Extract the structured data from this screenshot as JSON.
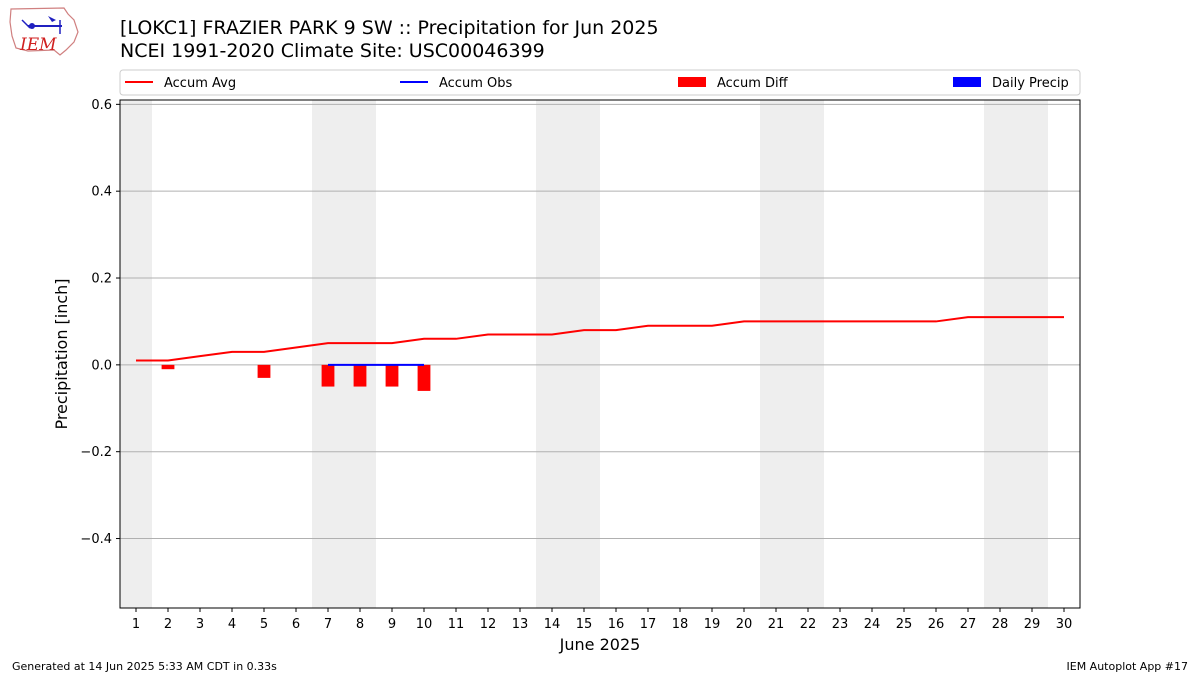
{
  "header": {
    "title_line1": "[LOKC1] FRAZIER PARK 9 SW :: Precipitation for Jun 2025",
    "title_line2": "NCEI 1991-2020 Climate Site: USC00046399",
    "logo_text": "IEM"
  },
  "footer": {
    "generated": "Generated at 14 Jun 2025 5:33 AM CDT in 0.33s",
    "app": "IEM Autoplot App #17"
  },
  "colors": {
    "accum_avg": "#ff0000",
    "accum_obs": "#0000ff",
    "accum_diff": "#ff0000",
    "daily_precip": "#0000ff",
    "weekend_shade": "#eeeeee",
    "grid": "#b0b0b0"
  },
  "chart_data": {
    "type": "line",
    "xlabel": "June 2025",
    "ylabel": "Precipitation [inch]",
    "x": [
      1,
      2,
      3,
      4,
      5,
      6,
      7,
      8,
      9,
      10,
      11,
      12,
      13,
      14,
      15,
      16,
      17,
      18,
      19,
      20,
      21,
      22,
      23,
      24,
      25,
      26,
      27,
      28,
      29,
      30
    ],
    "xticks": [
      "1",
      "2",
      "3",
      "4",
      "5",
      "6",
      "7",
      "8",
      "9",
      "10",
      "11",
      "12",
      "13",
      "14",
      "15",
      "16",
      "17",
      "18",
      "19",
      "20",
      "21",
      "22",
      "23",
      "24",
      "25",
      "26",
      "27",
      "28",
      "29",
      "30"
    ],
    "xlim": [
      0.5,
      30.5
    ],
    "ylim": [
      -0.56,
      0.61
    ],
    "yticks": [
      -0.4,
      -0.2,
      0.0,
      0.2,
      0.4,
      0.6
    ],
    "ytick_labels": [
      "−0.4",
      "−0.2",
      "0.0",
      "0.2",
      "0.4",
      "0.6"
    ],
    "grid": "horizontal",
    "legend": {
      "placement": "top",
      "entries": [
        "Accum Avg",
        "Accum Obs",
        "Accum Diff",
        "Daily Precip"
      ]
    },
    "weekend_bands": [
      [
        0.5,
        1.5
      ],
      [
        6.5,
        8.5
      ],
      [
        13.5,
        15.5
      ],
      [
        20.5,
        22.5
      ],
      [
        27.5,
        29.5
      ]
    ],
    "series": [
      {
        "name": "Accum Avg",
        "kind": "line",
        "x": [
          1,
          2,
          3,
          4,
          5,
          6,
          7,
          8,
          9,
          10,
          11,
          12,
          13,
          14,
          15,
          16,
          17,
          18,
          19,
          20,
          21,
          22,
          23,
          24,
          25,
          26,
          27,
          28,
          29,
          30
        ],
        "values": [
          0.01,
          0.01,
          0.02,
          0.03,
          0.03,
          0.04,
          0.05,
          0.05,
          0.05,
          0.06,
          0.06,
          0.07,
          0.07,
          0.07,
          0.08,
          0.08,
          0.09,
          0.09,
          0.09,
          0.1,
          0.1,
          0.1,
          0.1,
          0.1,
          0.1,
          0.1,
          0.11,
          0.11,
          0.11,
          0.11
        ]
      },
      {
        "name": "Accum Obs",
        "kind": "line",
        "x": [
          7,
          8,
          9,
          10
        ],
        "values": [
          0,
          0,
          0,
          0
        ]
      },
      {
        "name": "Accum Diff",
        "kind": "bar",
        "x": [
          2,
          5,
          7,
          8,
          9,
          10
        ],
        "values": [
          -0.01,
          -0.03,
          -0.05,
          -0.05,
          -0.05,
          -0.06
        ]
      },
      {
        "name": "Daily Precip",
        "kind": "bar",
        "x": [],
        "values": []
      }
    ]
  }
}
